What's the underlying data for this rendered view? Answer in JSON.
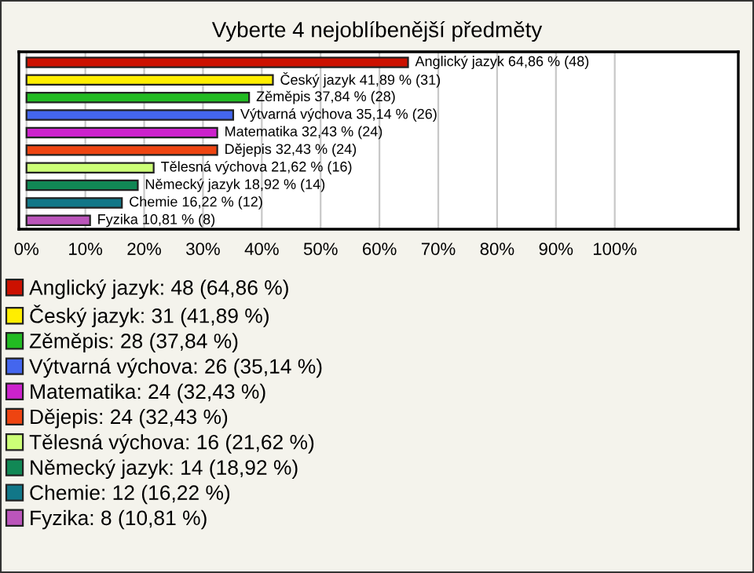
{
  "chart_data": {
    "type": "bar",
    "orientation": "horizontal",
    "title": "Vyberte 4 nejoblíbenější předměty",
    "categories": [
      null,
      null,
      null,
      null,
      null,
      null,
      null,
      null,
      null,
      null
    ],
    "series": [
      {
        "name": "Anglický jazyk: 48 (64,86 %)",
        "color": "#cc1100",
        "values": [
          64.86,
          null,
          null,
          null,
          null,
          null,
          null,
          null,
          null,
          null
        ],
        "value_labels": [
          "Anglický jazyk 64,86 % (48)",
          null,
          null,
          null,
          null,
          null,
          null,
          null,
          null,
          null
        ]
      },
      {
        "name": "Český jazyk: 31 (41,89 %)",
        "color": "#ffee00",
        "values": [
          null,
          41.89,
          null,
          null,
          null,
          null,
          null,
          null,
          null,
          null
        ],
        "value_labels": [
          null,
          "Český jazyk 41,89 % (31)",
          null,
          null,
          null,
          null,
          null,
          null,
          null,
          null
        ]
      },
      {
        "name": "Zěměpis: 28 (37,84 %)",
        "color": "#22bb22",
        "values": [
          null,
          null,
          37.84,
          null,
          null,
          null,
          null,
          null,
          null,
          null
        ],
        "value_labels": [
          null,
          null,
          "Zěměpis 37,84 % (28)",
          null,
          null,
          null,
          null,
          null,
          null,
          null
        ]
      },
      {
        "name": "Výtvarná výchova: 26 (35,14 %)",
        "color": "#4466ee",
        "values": [
          null,
          null,
          null,
          35.14,
          null,
          null,
          null,
          null,
          null,
          null
        ],
        "value_labels": [
          null,
          null,
          null,
          "Výtvarná výchova 35,14 % (26)",
          null,
          null,
          null,
          null,
          null,
          null
        ]
      },
      {
        "name": "Matematika: 24 (32,43 %)",
        "color": "#cc22cc",
        "values": [
          null,
          null,
          null,
          null,
          32.43,
          null,
          null,
          null,
          null,
          null
        ],
        "value_labels": [
          null,
          null,
          null,
          null,
          "Matematika 32,43 % (24)",
          null,
          null,
          null,
          null,
          null
        ]
      },
      {
        "name": "Dějepis: 24 (32,43 %)",
        "color": "#ee4411",
        "values": [
          null,
          null,
          null,
          null,
          null,
          32.43,
          null,
          null,
          null,
          null
        ],
        "value_labels": [
          null,
          null,
          null,
          null,
          null,
          "Dějepis 32,43 % (24)",
          null,
          null,
          null,
          null
        ]
      },
      {
        "name": "Tělesná výchova: 16 (21,62 %)",
        "color": "#ccff77",
        "values": [
          null,
          null,
          null,
          null,
          null,
          null,
          21.62,
          null,
          null,
          null
        ],
        "value_labels": [
          null,
          null,
          null,
          null,
          null,
          null,
          "Tělesná výchova 21,62 % (16)",
          null,
          null,
          null
        ]
      },
      {
        "name": "Německý jazyk: 14 (18,92 %)",
        "color": "#118855",
        "values": [
          null,
          null,
          null,
          null,
          null,
          null,
          null,
          18.92,
          null,
          null
        ],
        "value_labels": [
          null,
          null,
          null,
          null,
          null,
          null,
          null,
          "Německý jazyk 18,92 % (14)",
          null,
          null
        ]
      },
      {
        "name": "Chemie: 12 (16,22 %)",
        "color": "#117788",
        "values": [
          null,
          null,
          null,
          null,
          null,
          null,
          null,
          null,
          16.22,
          null
        ],
        "value_labels": [
          null,
          null,
          null,
          null,
          null,
          null,
          null,
          null,
          "Chemie 16,22 % (12)",
          null
        ]
      },
      {
        "name": "Fyzika: 8 (10,81 %)",
        "color": "#bb55bb",
        "values": [
          null,
          null,
          null,
          null,
          null,
          null,
          null,
          null,
          null,
          10.81
        ],
        "value_labels": [
          null,
          null,
          null,
          null,
          null,
          null,
          null,
          null,
          null,
          "Fyzika 10,81 % (8)"
        ]
      }
    ],
    "xlim": [
      -1.3,
      121
    ],
    "xticks": [
      {
        "value": 0,
        "label": "0%"
      },
      {
        "value": 10,
        "label": "10%"
      },
      {
        "value": 20,
        "label": "20%"
      },
      {
        "value": 30,
        "label": "30%"
      },
      {
        "value": 40,
        "label": "40%"
      },
      {
        "value": 50,
        "label": "50%"
      },
      {
        "value": 60,
        "label": "60%"
      },
      {
        "value": 70,
        "label": "70%"
      },
      {
        "value": 80,
        "label": "80%"
      },
      {
        "value": 90,
        "label": "90%"
      },
      {
        "value": 100,
        "label": "100%"
      }
    ],
    "grid": "x",
    "legend": "bottom"
  }
}
